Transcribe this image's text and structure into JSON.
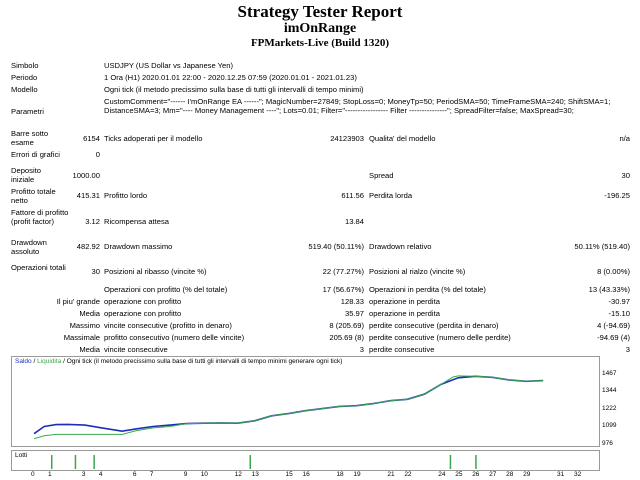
{
  "report": {
    "title": "Strategy Tester Report",
    "ea_name": "imOnRange",
    "broker": "FPMarkets-Live (Build 1320)"
  },
  "info": {
    "symbol_label": "Simbolo",
    "symbol_value": "USDJPY (US Dollar vs Japanese Yen)",
    "period_label": "Periodo",
    "period_value": "1 Ora (H1) 2020.01.01 22:00 - 2020.12.25 07:59 (2020.01.01 - 2021.01.23)",
    "model_label": "Modello",
    "model_value": "Ogni tick (il metodo precissimo sulla base di tutti gli intervalli di tempo minimi)",
    "params_label": "Parametri",
    "params_value": "CustomComment=\"------ I'mOnRange EA ------\"; MagicNumber=27849; StopLoss=0; MoneyTp=50; PeriodSMA=50; TimeFrameSMA=240; ShiftSMA=1; DistanceSMA=3; Mm=\"---- Money Management ----\"; Lots=0.01; Filter=\"----------------- Filter ---------------\"; SpreadFilter=false; MaxSpread=30;"
  },
  "stats": {
    "bars_label": "Barre sotto esame",
    "bars_value": "6154",
    "ticks_label": "Ticks adoperati per il modello",
    "ticks_value": "24123903",
    "quality_label": "Qualita' del modello",
    "quality_value": "n/a",
    "errors_label": "Errori di grafici",
    "errors_value": "0",
    "deposit_label": "Deposito iniziale",
    "deposit_value": "1000.00",
    "spread_label": "Spread",
    "spread_value": "30",
    "net_label": "Profitto totale netto",
    "net_value": "415.31",
    "gross_profit_label": "Profitto lordo",
    "gross_profit_value": "611.56",
    "gross_loss_label": "Perdita lorda",
    "gross_loss_value": "-196.25",
    "pf_label": "Fattore di profitto (profit factor)",
    "pf_value": "3.12",
    "payoff_label": "Ricompensa attesa",
    "payoff_value": "13.84",
    "abs_dd_label": "Drawdown assoluto",
    "abs_dd_value": "482.92",
    "max_dd_label": "Drawdown massimo",
    "max_dd_value": "519.40 (50.11%)",
    "rel_dd_label": "Drawdown relativo",
    "rel_dd_value": "50.11% (519.40)",
    "total_trades_label": "Operazioni totali",
    "total_trades_value": "30",
    "short_label": "Posizioni al ribasso (vincite %)",
    "short_value": "22 (77.27%)",
    "long_label": "Posizioni al rialzo (vincite %)",
    "long_value": "8 (0.00%)",
    "profit_trades_label": "Operazioni con profitto (% del totale)",
    "profit_trades_value": "17 (56.67%)",
    "loss_trades_label": "Operazioni in perdita (% del totale)",
    "loss_trades_value": "13 (43.33%)",
    "largest_label": "Il piu' grande",
    "largest_profit_label": "operazione con profitto",
    "largest_profit_value": "128.33",
    "largest_loss_label": "operazione in perdita",
    "largest_loss_value": "-30.97",
    "average_label": "Media",
    "avg_profit_label": "operazione con profitto",
    "avg_profit_value": "35.97",
    "avg_loss_label": "operazione in perdita",
    "avg_loss_value": "-15.10",
    "maximum_label": "Massimo",
    "max_consec_wins_label": "vincite consecutive (profitto in denaro)",
    "max_consec_wins_value": "8 (205.69)",
    "max_consec_losses_label": "perdite consecutive (perdita in denaro)",
    "max_consec_losses_value": "4 (-94.69)",
    "maximal_label": "Massimale",
    "maximal_profit_label": "profitto consecutivo (numero delle vincite)",
    "maximal_profit_value": "205.69 (8)",
    "maximal_loss_label": "perdite consecutive (numero delle perdite)",
    "maximal_loss_value": "-94.69 (4)",
    "avg_label2": "Media",
    "avg_consec_wins_label": "vincite consecutive",
    "avg_consec_wins_value": "3",
    "avg_consec_losses_label": "perdite consecutive",
    "avg_consec_losses_value": "3"
  },
  "chart_data": {
    "type": "line",
    "legend_text": "Ogni tick (il metodo precissimo sulla base di tutti gli intervalli di tempo minimi generare ogni tick)",
    "legend_items": [
      {
        "name": "Saldo",
        "color": "#1c2fb8"
      },
      {
        "name": "Liquidita",
        "color": "#3aa84a"
      }
    ],
    "series": [
      {
        "name": "Saldo",
        "color": "#1c2fb8",
        "x": [
          0,
          0.6,
          1.3,
          2,
          3,
          4,
          5.2,
          6,
          7,
          8,
          9,
          10,
          11,
          12,
          13,
          14,
          15,
          16,
          17,
          18,
          19,
          20,
          21,
          22,
          23,
          24,
          25,
          26,
          27,
          28,
          29,
          30
        ],
        "y": [
          1055,
          1105,
          1118,
          1120,
          1115,
          1095,
          1072,
          1088,
          1105,
          1115,
          1125,
          1128,
          1130,
          1128,
          1145,
          1180,
          1195,
          1215,
          1230,
          1245,
          1250,
          1265,
          1285,
          1295,
          1330,
          1400,
          1445,
          1455,
          1448,
          1430,
          1420,
          1425
        ]
      },
      {
        "name": "Liquidita",
        "color": "#3aa84a",
        "x": [
          0,
          0.6,
          1.3,
          3,
          4,
          5.2,
          6,
          7,
          8,
          9,
          10,
          11,
          12,
          13,
          14,
          15,
          16,
          17,
          18,
          19,
          20,
          21,
          22,
          23,
          24,
          24.7,
          25,
          26,
          27,
          28,
          29,
          30
        ],
        "y": [
          1020,
          1040,
          1050,
          1050,
          1050,
          1050,
          1075,
          1095,
          1105,
          1125,
          1128,
          1130,
          1128,
          1145,
          1180,
          1195,
          1215,
          1230,
          1245,
          1250,
          1265,
          1285,
          1295,
          1330,
          1400,
          1450,
          1458,
          1455,
          1448,
          1430,
          1420,
          1425
        ]
      }
    ],
    "ylim": [
      976,
      1520
    ],
    "yticks": [
      976,
      1099,
      1222,
      1344,
      1467
    ],
    "xlim": [
      0,
      32
    ],
    "xticks": [
      0,
      1,
      3,
      4,
      6,
      7,
      9,
      10,
      12,
      13,
      15,
      16,
      18,
      19,
      21,
      22,
      24,
      25,
      26,
      27,
      28,
      29,
      31,
      32
    ],
    "lots_label": "Lotti",
    "lots_positions": [
      1,
      2.4,
      3.5,
      12.7,
      24.5,
      26
    ]
  }
}
